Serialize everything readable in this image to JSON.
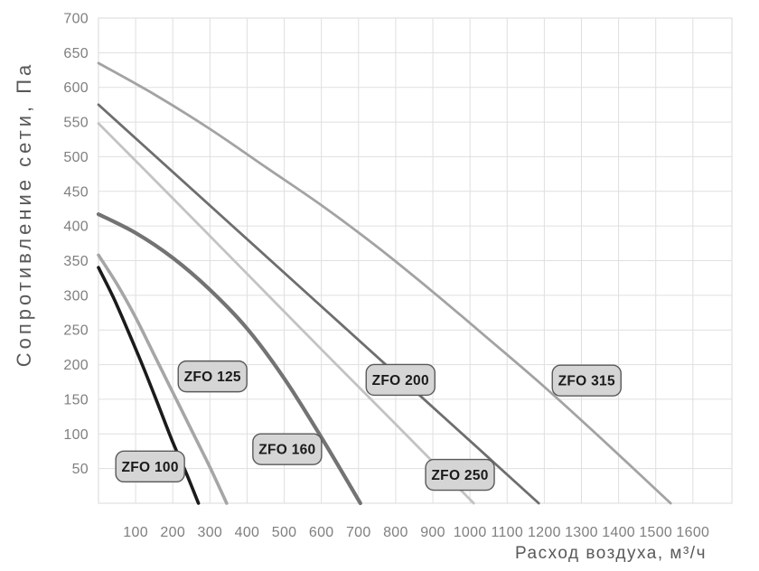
{
  "chart_data": {
    "type": "line",
    "title": "",
    "xlabel": "Расход воздуха, м³/ч",
    "ylabel": "Сопротивление сети, Па",
    "xlim": [
      0,
      1705
    ],
    "ylim": [
      0,
      700
    ],
    "x_ticks": [
      100,
      200,
      300,
      400,
      500,
      600,
      700,
      800,
      900,
      1000,
      1100,
      1200,
      1300,
      1400,
      1500,
      1600
    ],
    "y_ticks": [
      50,
      100,
      150,
      200,
      250,
      300,
      350,
      400,
      450,
      500,
      550,
      600,
      650,
      700
    ],
    "grid": {
      "show": true,
      "x_step": 100,
      "y_step": 50
    },
    "legend_position": "labels-on-chart",
    "colors": {
      "background": "#ffffff",
      "grid": "#dfdfdf",
      "plot_border": "#dfdfdf",
      "tick_label": "#7f7f7f",
      "axis_title": "#595959",
      "label_box_fill": "#d5d5d5",
      "label_box_border": "#595959",
      "label_text": "#1a1a1a"
    },
    "series": [
      {
        "name": "ZFO 100",
        "color": "#1b1b1b",
        "width": 3.6,
        "label_at": {
          "x": 139,
          "y": 53
        },
        "points": [
          [
            0,
            340
          ],
          [
            40,
            297
          ],
          [
            80,
            248
          ],
          [
            120,
            197
          ],
          [
            160,
            143
          ],
          [
            200,
            88
          ],
          [
            235,
            45
          ],
          [
            269,
            0
          ]
        ]
      },
      {
        "name": "ZFO 125",
        "color": "#a6a6a6",
        "width": 3.6,
        "label_at": {
          "x": 307,
          "y": 183
        },
        "points": [
          [
            0,
            358
          ],
          [
            50,
            316
          ],
          [
            100,
            268
          ],
          [
            150,
            214
          ],
          [
            200,
            160
          ],
          [
            250,
            106
          ],
          [
            300,
            52
          ],
          [
            345,
            0
          ]
        ]
      },
      {
        "name": "ZFO 160",
        "color": "#737373",
        "width": 4.2,
        "label_at": {
          "x": 508,
          "y": 78
        },
        "points": [
          [
            0,
            417
          ],
          [
            100,
            390
          ],
          [
            200,
            354
          ],
          [
            300,
            308
          ],
          [
            400,
            252
          ],
          [
            500,
            180
          ],
          [
            600,
            95
          ],
          [
            705,
            0
          ]
        ]
      },
      {
        "name": "ZFO 200",
        "color": "#6e6e6e",
        "width": 2.8,
        "label_at": {
          "x": 813,
          "y": 178
        },
        "points": [
          [
            0,
            575
          ],
          [
            200,
            478
          ],
          [
            400,
            381
          ],
          [
            600,
            284
          ],
          [
            800,
            187
          ],
          [
            1000,
            90
          ],
          [
            1185,
            0
          ]
        ]
      },
      {
        "name": "ZFO 250",
        "color": "#c3c3c3",
        "width": 2.8,
        "label_at": {
          "x": 973,
          "y": 41
        },
        "points": [
          [
            0,
            548
          ],
          [
            200,
            440
          ],
          [
            400,
            331
          ],
          [
            600,
            222
          ],
          [
            800,
            114
          ],
          [
            1010,
            0
          ]
        ]
      },
      {
        "name": "ZFO 315",
        "color": "#a3a3a3",
        "width": 2.8,
        "label_at": {
          "x": 1314,
          "y": 177
        },
        "points": [
          [
            0,
            635
          ],
          [
            150,
            590
          ],
          [
            300,
            540
          ],
          [
            450,
            485
          ],
          [
            600,
            430
          ],
          [
            750,
            370
          ],
          [
            900,
            305
          ],
          [
            1050,
            237
          ],
          [
            1200,
            168
          ],
          [
            1350,
            95
          ],
          [
            1540,
            0
          ]
        ]
      }
    ],
    "label_box": {
      "width": 76,
      "height": 34,
      "radius": 9
    }
  }
}
